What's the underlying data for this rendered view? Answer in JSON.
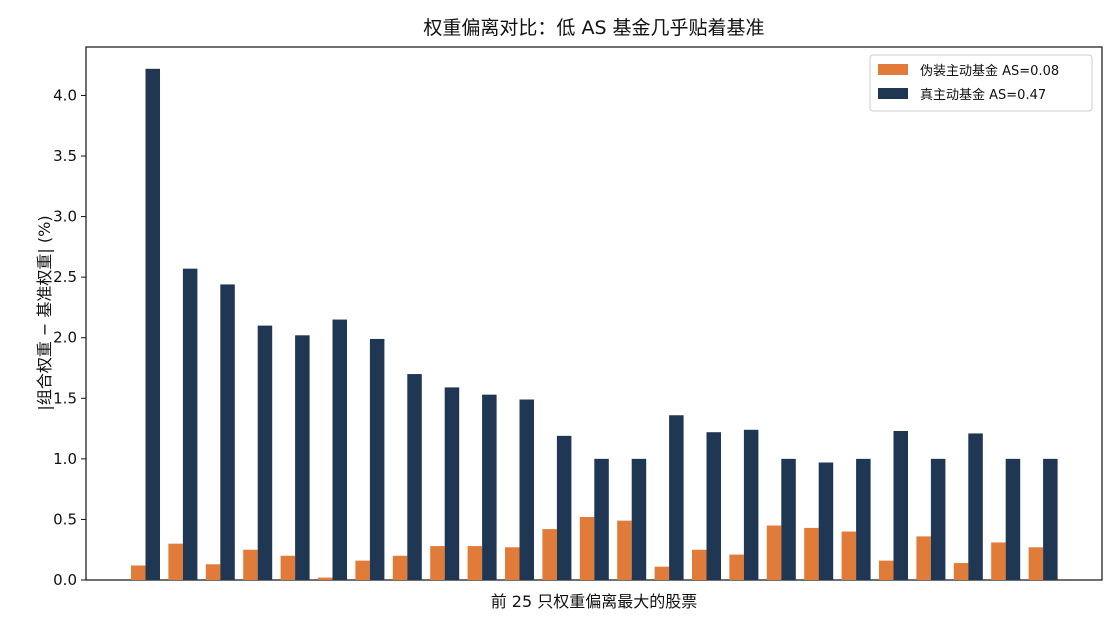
{
  "chart_data": {
    "type": "bar",
    "title": "权重偏离对比：低 AS 基金几乎贴着基准",
    "xlabel": "前 25 只权重偏离最大的股票",
    "ylabel": "|组合权重 − 基准权重| (%)",
    "ylim": [
      0,
      4.4
    ],
    "yticks": [
      0.0,
      0.5,
      1.0,
      1.5,
      2.0,
      2.5,
      3.0,
      3.5,
      4.0
    ],
    "ytick_labels": [
      "0.0",
      "0.5",
      "1.0",
      "1.5",
      "2.0",
      "2.5",
      "3.0",
      "3.5",
      "4.0"
    ],
    "grid": false,
    "legend_position": "top-right",
    "series": [
      {
        "name": "伪装主动基金 AS=0.08",
        "color": "#e07b39",
        "values": [
          0.12,
          0.3,
          0.13,
          0.25,
          0.2,
          0.02,
          0.16,
          0.2,
          0.28,
          0.28,
          0.27,
          0.42,
          0.52,
          0.49,
          0.11,
          0.25,
          0.21,
          0.45,
          0.43,
          0.4,
          0.16,
          0.36,
          0.14,
          0.31,
          0.27
        ]
      },
      {
        "name": "真主动基金 AS=0.47",
        "color": "#1f3752",
        "values": [
          4.22,
          2.57,
          2.44,
          2.1,
          2.02,
          2.15,
          1.99,
          1.7,
          1.59,
          1.53,
          1.49,
          1.19,
          1.0,
          1.0,
          1.36,
          1.22,
          1.24,
          1.0,
          0.97,
          1.0,
          1.23,
          1.0,
          1.21,
          1.0,
          1.0
        ]
      }
    ]
  }
}
